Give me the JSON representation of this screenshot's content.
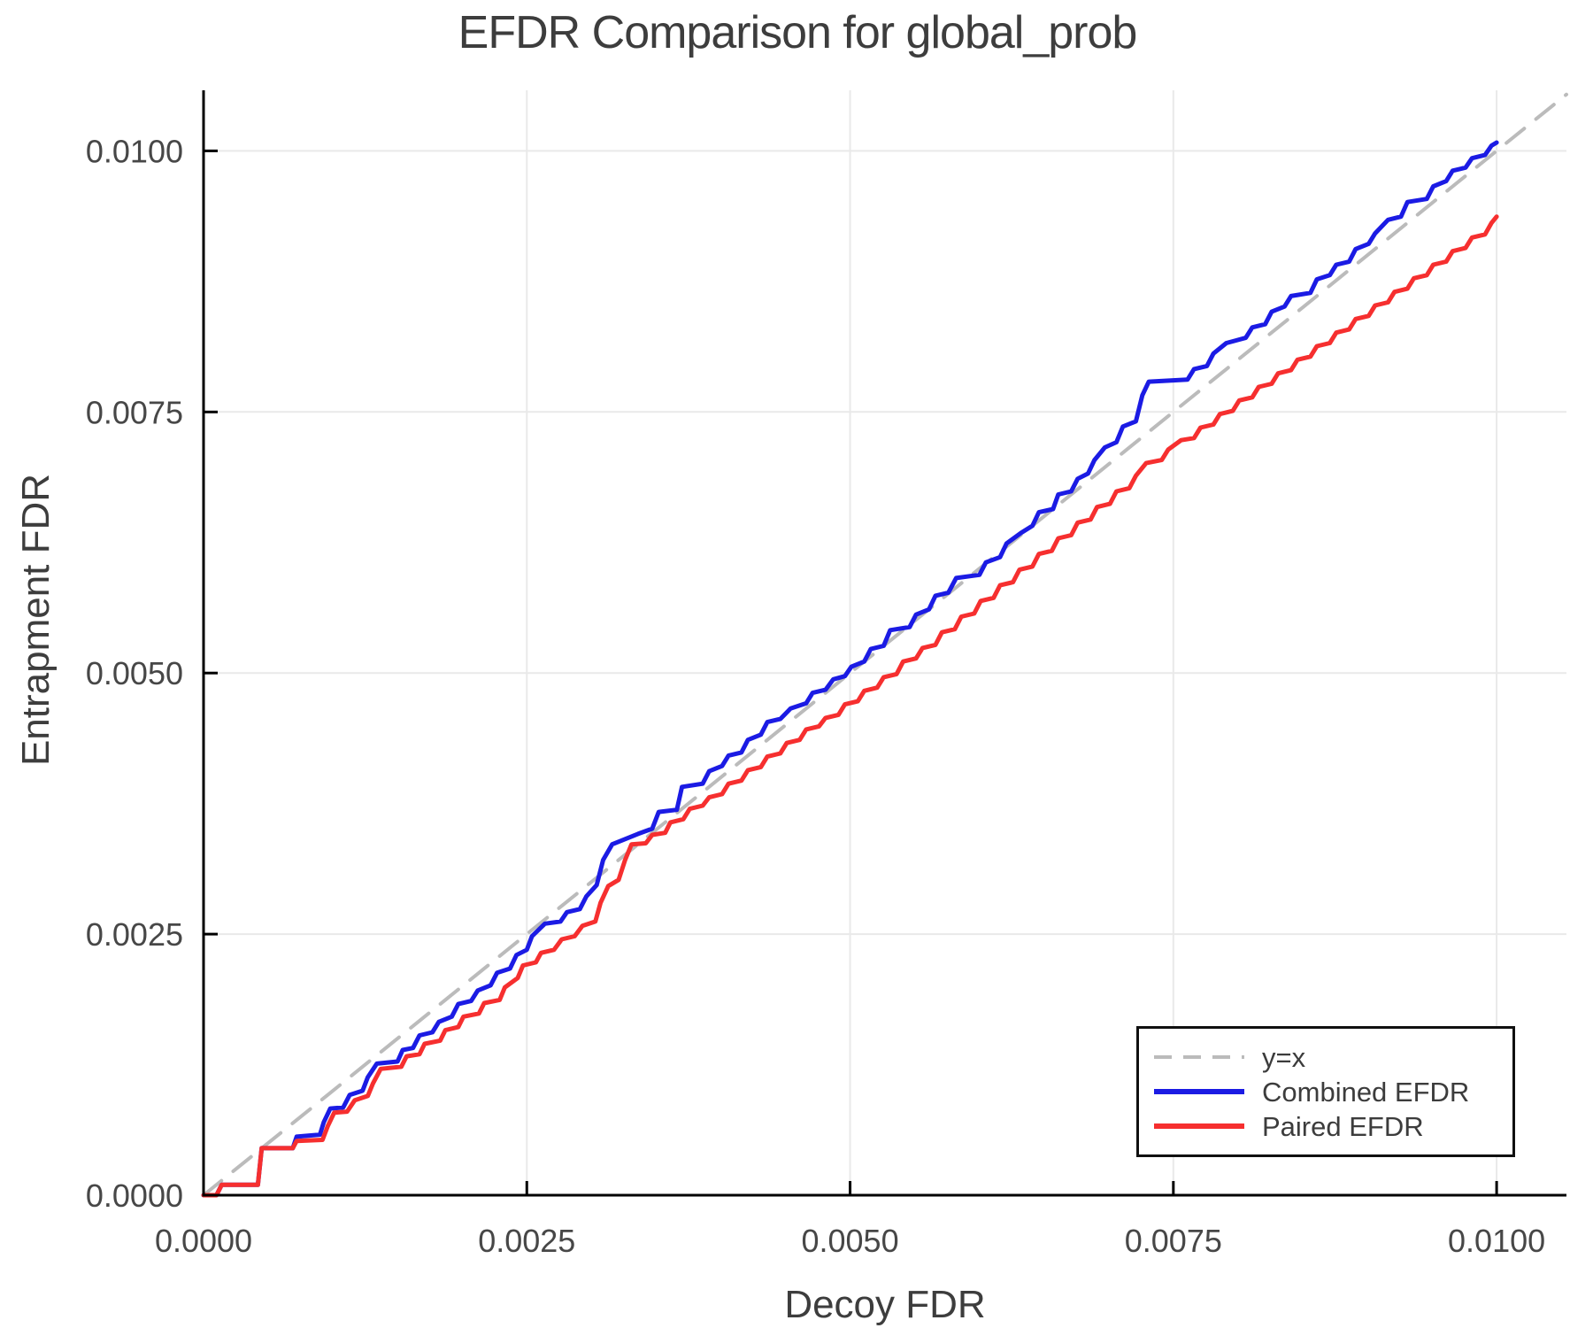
{
  "title": "EFDR Comparison for global_prob",
  "axis": {
    "xlabel": "Decoy FDR",
    "ylabel": "Entrapment FDR",
    "x_tick_labels": [
      "0.0000",
      "0.0025",
      "0.0050",
      "0.0075",
      "0.0100"
    ],
    "y_tick_labels": [
      "0.0000",
      "0.0025",
      "0.0050",
      "0.0075",
      "0.0100"
    ],
    "x_tick_values": [
      0,
      0.0025,
      0.005,
      0.0075,
      0.01
    ],
    "y_tick_values": [
      0,
      0.0025,
      0.005,
      0.0075,
      0.01
    ]
  },
  "legend": {
    "items": [
      {
        "label": "y=x",
        "color": "#bbbbbb",
        "dash": true,
        "width": 4
      },
      {
        "label": "Combined EFDR",
        "color": "#1b1be4",
        "dash": false,
        "width": 6
      },
      {
        "label": "Paired EFDR",
        "color": "#f62f2f",
        "dash": false,
        "width": 6
      }
    ]
  },
  "colors": {
    "grid": "#e9e9e9",
    "spine": "#000000",
    "title_text": "#3d3d3d",
    "tick_text": "#474747",
    "combined_line": "#1b1be4",
    "paired_line": "#f62f2f",
    "identity_line": "#bbbbbb"
  },
  "chart_data": {
    "type": "line",
    "title": "EFDR Comparison for global_prob",
    "xlabel": "Decoy FDR",
    "ylabel": "Entrapment FDR",
    "xlim": [
      0,
      0.01054
    ],
    "ylim": [
      0,
      0.01058
    ],
    "grid": true,
    "legend_position": "bottom-right",
    "point_scale": 0.0001,
    "point_scale_note": "multiply each coordinate by point_scale to get FDR values; e.g. [25,23.5] -> x=0.0025, y=0.00235",
    "series": [
      {
        "name": "y=x",
        "style": "dashed",
        "color": "#bbbbbb",
        "width": 4,
        "points": [
          [
            0,
            0
          ],
          [
            105.4,
            105.4
          ]
        ]
      },
      {
        "name": "Combined EFDR",
        "style": "solid",
        "color": "#1b1be4",
        "width": 5,
        "points": [
          [
            0,
            0
          ],
          [
            1,
            0
          ],
          [
            1.4,
            1
          ],
          [
            4.2,
            1
          ],
          [
            4.5,
            4.5
          ],
          [
            6.9,
            4.5
          ],
          [
            7.2,
            5.6
          ],
          [
            9,
            5.8
          ],
          [
            9.3,
            7
          ],
          [
            9.8,
            8.3
          ],
          [
            10.8,
            8.4
          ],
          [
            11.3,
            9.6
          ],
          [
            12.3,
            10
          ],
          [
            12.7,
            11.3
          ],
          [
            13.4,
            12.6
          ],
          [
            15,
            12.8
          ],
          [
            15.4,
            13.9
          ],
          [
            16.2,
            14.1
          ],
          [
            16.7,
            15.3
          ],
          [
            17.7,
            15.6
          ],
          [
            18.2,
            16.6
          ],
          [
            19.2,
            17.1
          ],
          [
            19.7,
            18.3
          ],
          [
            20.7,
            18.6
          ],
          [
            21.2,
            19.6
          ],
          [
            22.2,
            20.1
          ],
          [
            22.7,
            21.3
          ],
          [
            23.7,
            21.7
          ],
          [
            24.2,
            23
          ],
          [
            25,
            23.5
          ],
          [
            25.4,
            24.8
          ],
          [
            26.4,
            26
          ],
          [
            27.6,
            26.2
          ],
          [
            28.1,
            27.1
          ],
          [
            29.1,
            27.4
          ],
          [
            29.6,
            28.6
          ],
          [
            30.4,
            29.7
          ],
          [
            30.9,
            32.1
          ],
          [
            31.6,
            33.6
          ],
          [
            33.6,
            34.6
          ],
          [
            34.7,
            35.1
          ],
          [
            35.2,
            36.7
          ],
          [
            36.6,
            36.9
          ],
          [
            37,
            39.1
          ],
          [
            38.6,
            39.4
          ],
          [
            39.1,
            40.6
          ],
          [
            40.1,
            41.1
          ],
          [
            40.6,
            42.1
          ],
          [
            41.6,
            42.4
          ],
          [
            42.1,
            43.6
          ],
          [
            43.1,
            44.1
          ],
          [
            43.6,
            45.3
          ],
          [
            44.6,
            45.6
          ],
          [
            45.4,
            46.6
          ],
          [
            46.6,
            47.1
          ],
          [
            47.1,
            48.1
          ],
          [
            48.1,
            48.4
          ],
          [
            48.7,
            49.4
          ],
          [
            49.6,
            49.7
          ],
          [
            50.1,
            50.6
          ],
          [
            51.1,
            51.1
          ],
          [
            51.6,
            52.3
          ],
          [
            52.6,
            52.6
          ],
          [
            53.1,
            54.1
          ],
          [
            54.6,
            54.4
          ],
          [
            55.1,
            55.6
          ],
          [
            56.1,
            56.1
          ],
          [
            56.6,
            57.4
          ],
          [
            57.6,
            57.7
          ],
          [
            58.2,
            59.1
          ],
          [
            60,
            59.4
          ],
          [
            60.5,
            60.6
          ],
          [
            61.6,
            61.1
          ],
          [
            62.1,
            62.4
          ],
          [
            63.2,
            63.4
          ],
          [
            64.1,
            64.1
          ],
          [
            64.6,
            65.4
          ],
          [
            65.7,
            65.7
          ],
          [
            66.1,
            67.1
          ],
          [
            67.1,
            67.4
          ],
          [
            67.6,
            68.6
          ],
          [
            68.4,
            69.1
          ],
          [
            68.9,
            70.4
          ],
          [
            69.7,
            71.6
          ],
          [
            70.6,
            72.1
          ],
          [
            71.1,
            73.6
          ],
          [
            72.1,
            74.1
          ],
          [
            72.6,
            76.6
          ],
          [
            73.1,
            77.9
          ],
          [
            76.1,
            78.1
          ],
          [
            76.6,
            79.1
          ],
          [
            77.6,
            79.4
          ],
          [
            78.1,
            80.6
          ],
          [
            79.1,
            81.6
          ],
          [
            80.6,
            82.1
          ],
          [
            81.1,
            83.1
          ],
          [
            82.1,
            83.4
          ],
          [
            82.6,
            84.6
          ],
          [
            83.6,
            85.1
          ],
          [
            84.1,
            86.1
          ],
          [
            85.6,
            86.4
          ],
          [
            86.1,
            87.7
          ],
          [
            87.1,
            88.1
          ],
          [
            87.6,
            89.1
          ],
          [
            88.6,
            89.4
          ],
          [
            89.1,
            90.6
          ],
          [
            90.1,
            91.1
          ],
          [
            90.6,
            92.1
          ],
          [
            91.6,
            93.4
          ],
          [
            92.6,
            93.7
          ],
          [
            93.1,
            95.1
          ],
          [
            94.6,
            95.4
          ],
          [
            95.1,
            96.6
          ],
          [
            96.1,
            97.1
          ],
          [
            96.6,
            98.1
          ],
          [
            97.6,
            98.4
          ],
          [
            98.1,
            99.3
          ],
          [
            99.1,
            99.6
          ],
          [
            99.6,
            100.5
          ],
          [
            100,
            100.8
          ]
        ]
      },
      {
        "name": "Paired EFDR",
        "style": "solid",
        "color": "#f62f2f",
        "width": 5,
        "points": [
          [
            0,
            0
          ],
          [
            1,
            0
          ],
          [
            1.4,
            1
          ],
          [
            4.2,
            1
          ],
          [
            4.5,
            4.5
          ],
          [
            6.9,
            4.5
          ],
          [
            7.2,
            5.2
          ],
          [
            9.2,
            5.3
          ],
          [
            9.6,
            6.6
          ],
          [
            10.1,
            7.9
          ],
          [
            11.1,
            8
          ],
          [
            11.7,
            9.1
          ],
          [
            12.7,
            9.5
          ],
          [
            13.1,
            10.7
          ],
          [
            13.7,
            12.1
          ],
          [
            15.3,
            12.3
          ],
          [
            15.7,
            13.3
          ],
          [
            16.7,
            13.5
          ],
          [
            17.1,
            14.5
          ],
          [
            18.3,
            14.8
          ],
          [
            18.7,
            15.8
          ],
          [
            19.7,
            16.1
          ],
          [
            20.1,
            17.1
          ],
          [
            21.3,
            17.4
          ],
          [
            21.7,
            18.4
          ],
          [
            22.9,
            18.7
          ],
          [
            23.3,
            19.9
          ],
          [
            24.3,
            20.8
          ],
          [
            24.7,
            22
          ],
          [
            25.7,
            22.3
          ],
          [
            26.1,
            23.2
          ],
          [
            27.1,
            23.5
          ],
          [
            27.7,
            24.5
          ],
          [
            28.7,
            24.8
          ],
          [
            29.3,
            25.8
          ],
          [
            30.3,
            26.2
          ],
          [
            30.7,
            28
          ],
          [
            31.3,
            29.6
          ],
          [
            32.1,
            30.2
          ],
          [
            32.6,
            32.1
          ],
          [
            33.1,
            33.6
          ],
          [
            34.2,
            33.7
          ],
          [
            34.7,
            34.5
          ],
          [
            35.7,
            34.7
          ],
          [
            36.1,
            35.7
          ],
          [
            37.1,
            36
          ],
          [
            37.6,
            37
          ],
          [
            38.6,
            37.3
          ],
          [
            39.1,
            38.1
          ],
          [
            40.1,
            38.4
          ],
          [
            40.6,
            39.4
          ],
          [
            41.6,
            39.7
          ],
          [
            42.1,
            40.7
          ],
          [
            43.1,
            41
          ],
          [
            43.6,
            42
          ],
          [
            44.6,
            42.3
          ],
          [
            45.1,
            43.3
          ],
          [
            46.1,
            43.6
          ],
          [
            46.6,
            44.6
          ],
          [
            47.6,
            44.9
          ],
          [
            48.1,
            45.7
          ],
          [
            49.1,
            46
          ],
          [
            49.6,
            47
          ],
          [
            50.6,
            47.3
          ],
          [
            51.1,
            48.3
          ],
          [
            52.1,
            48.6
          ],
          [
            52.6,
            49.6
          ],
          [
            53.6,
            49.9
          ],
          [
            54.1,
            51.1
          ],
          [
            55.1,
            51.4
          ],
          [
            55.6,
            52.4
          ],
          [
            56.6,
            52.7
          ],
          [
            57.1,
            53.9
          ],
          [
            58.1,
            54.2
          ],
          [
            58.6,
            55.4
          ],
          [
            59.6,
            55.7
          ],
          [
            60.1,
            56.9
          ],
          [
            61.1,
            57.2
          ],
          [
            61.6,
            58.4
          ],
          [
            62.6,
            58.7
          ],
          [
            63.1,
            59.9
          ],
          [
            64.1,
            60.2
          ],
          [
            64.6,
            61.4
          ],
          [
            65.6,
            61.7
          ],
          [
            66.1,
            62.9
          ],
          [
            67.1,
            63.2
          ],
          [
            67.6,
            64.4
          ],
          [
            68.6,
            64.7
          ],
          [
            69.1,
            65.9
          ],
          [
            70.1,
            66.2
          ],
          [
            70.6,
            67.4
          ],
          [
            71.6,
            67.7
          ],
          [
            72.1,
            68.9
          ],
          [
            72.9,
            70.1
          ],
          [
            74.1,
            70.4
          ],
          [
            74.6,
            71.4
          ],
          [
            75.6,
            72.3
          ],
          [
            76.6,
            72.5
          ],
          [
            77.1,
            73.5
          ],
          [
            78.1,
            73.8
          ],
          [
            78.6,
            74.8
          ],
          [
            79.6,
            75.1
          ],
          [
            80.1,
            76.1
          ],
          [
            81.1,
            76.4
          ],
          [
            81.6,
            77.4
          ],
          [
            82.6,
            77.7
          ],
          [
            83.1,
            78.7
          ],
          [
            84.1,
            79
          ],
          [
            84.6,
            80
          ],
          [
            85.6,
            80.3
          ],
          [
            86.1,
            81.3
          ],
          [
            87.1,
            81.6
          ],
          [
            87.6,
            82.6
          ],
          [
            88.6,
            82.9
          ],
          [
            89.1,
            83.9
          ],
          [
            90.1,
            84.2
          ],
          [
            90.6,
            85.2
          ],
          [
            91.6,
            85.5
          ],
          [
            92.1,
            86.5
          ],
          [
            93.1,
            86.8
          ],
          [
            93.6,
            87.8
          ],
          [
            94.6,
            88.1
          ],
          [
            95.1,
            89.1
          ],
          [
            96.1,
            89.4
          ],
          [
            96.6,
            90.4
          ],
          [
            97.6,
            90.7
          ],
          [
            98.1,
            91.7
          ],
          [
            99.1,
            92
          ],
          [
            99.6,
            93.1
          ],
          [
            100,
            93.7
          ]
        ]
      }
    ]
  }
}
